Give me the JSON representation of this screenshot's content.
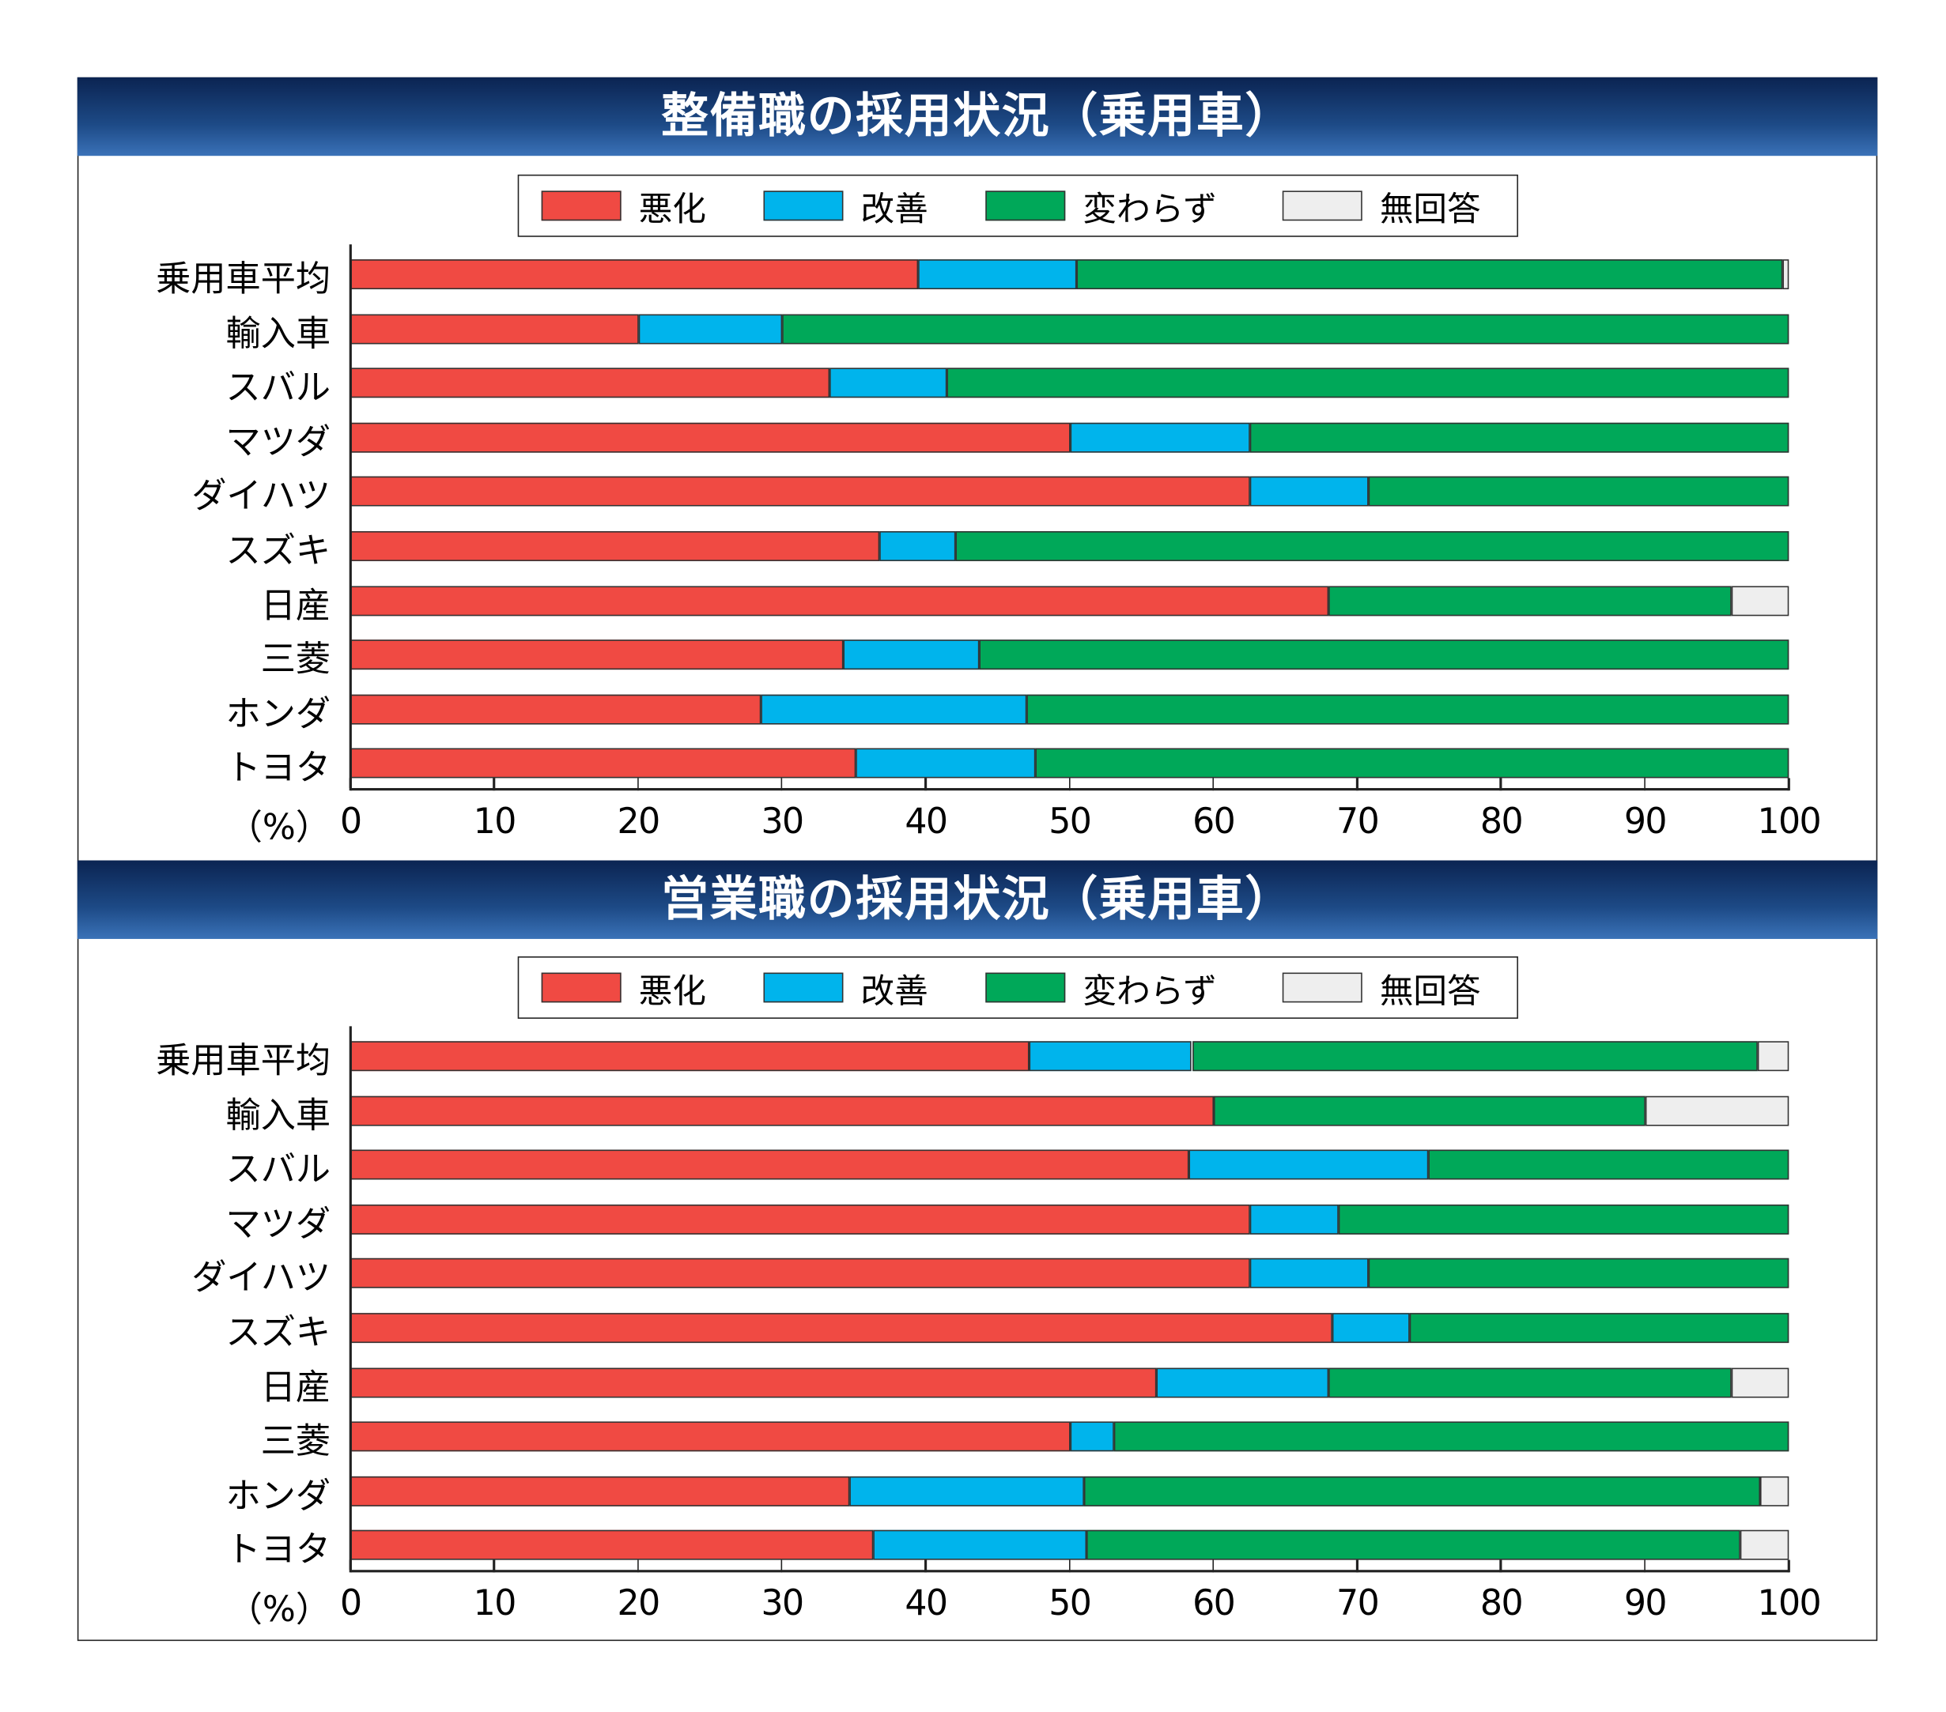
{
  "colors": {
    "悪化": "#f04a43",
    "改善": "#00b4ec",
    "変わらず": "#00a859",
    "無回答": "#eeeeee"
  },
  "chart_data": [
    {
      "type": "bar",
      "orientation": "horizontal",
      "stacked": true,
      "title": "整備職の採用状況（乗用車）",
      "legend": [
        "悪化",
        "改善",
        "変わらず",
        "無回答"
      ],
      "categories": [
        "乗用車平均",
        "輸入車",
        "スバル",
        "マツダ",
        "ダイハツ",
        "スズキ",
        "日産",
        "三菱",
        "ホンダ",
        "トヨタ"
      ],
      "series": [
        {
          "name": "悪化",
          "values": [
            39.5,
            20,
            33.3,
            50,
            62.5,
            36.8,
            68,
            34.3,
            28.5,
            35.1
          ]
        },
        {
          "name": "改善",
          "values": [
            11,
            10,
            8.2,
            12.5,
            8.3,
            5.3,
            0,
            9.4,
            18.5,
            12.5
          ]
        },
        {
          "name": "変わらず",
          "values": [
            49.1,
            70,
            58.5,
            37.5,
            29.2,
            57.9,
            28,
            56.3,
            53,
            52.4
          ]
        },
        {
          "name": "無回答",
          "values": [
            0.4,
            0,
            0,
            0,
            0,
            0,
            4,
            0,
            0,
            0
          ]
        }
      ],
      "xlabel": "（%）",
      "xlim": [
        0,
        100
      ],
      "xticks": [
        "0",
        "10",
        "20",
        "30",
        "40",
        "50",
        "60",
        "70",
        "80",
        "90",
        "100"
      ]
    },
    {
      "type": "bar",
      "orientation": "horizontal",
      "stacked": true,
      "title": "営業職の採用状況（乗用車）",
      "legend": [
        "悪化",
        "改善",
        "変わらず",
        "無回答"
      ],
      "categories": [
        "乗用車平均",
        "輸入車",
        "スバル",
        "マツダ",
        "ダイハツ",
        "スズキ",
        "日産",
        "三菱",
        "ホンダ",
        "トヨタ"
      ],
      "series": [
        {
          "name": "悪化",
          "values": [
            47.2,
            60,
            58.3,
            62.5,
            62.5,
            68.3,
            56,
            50,
            34.7,
            36.3
          ]
        },
        {
          "name": "改善",
          "values": [
            11.3,
            0,
            16.6,
            6.2,
            8.3,
            5.3,
            12,
            3.1,
            16.3,
            14.9
          ]
        },
        {
          "name": "変わらず",
          "values": [
            39.3,
            30,
            25.1,
            31.3,
            29.2,
            26.4,
            28,
            46.9,
            47,
            45.4
          ]
        },
        {
          "name": "無回答",
          "values": [
            2.2,
            10,
            0,
            0,
            0,
            0,
            4,
            0,
            2,
            3.4
          ]
        }
      ],
      "xlabel": "（%）",
      "xlim": [
        0,
        100
      ],
      "xticks": [
        "0",
        "10",
        "20",
        "30",
        "40",
        "50",
        "60",
        "70",
        "80",
        "90",
        "100"
      ]
    }
  ]
}
